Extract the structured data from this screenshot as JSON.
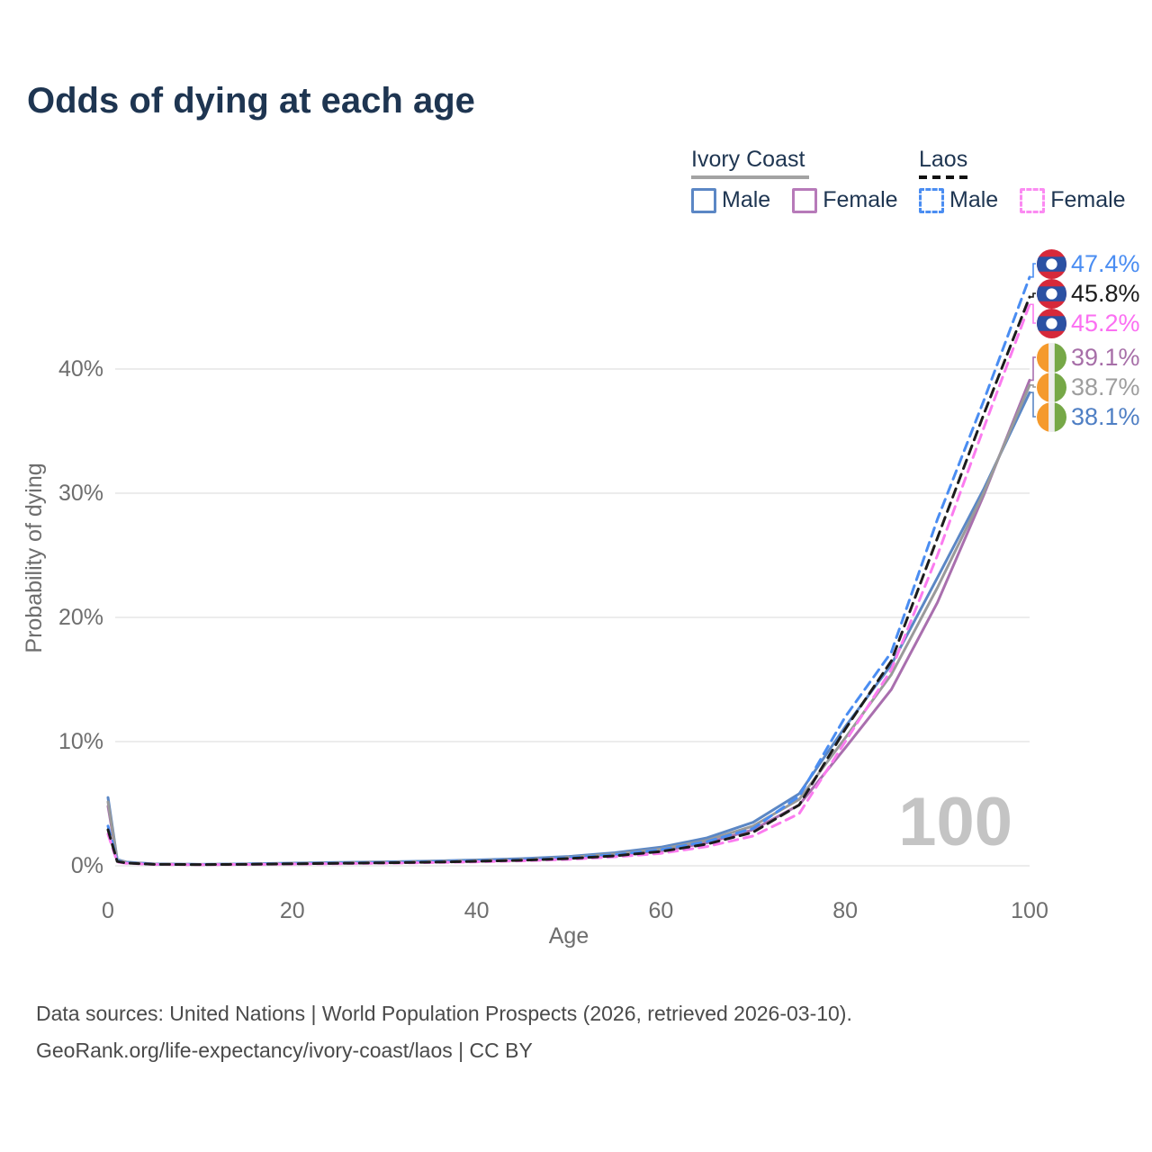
{
  "title": "Odds of dying at each age",
  "legend": {
    "groups": [
      {
        "label": "Ivory Coast",
        "line_style": "solid",
        "underline_color": "#a3a3a3",
        "items": [
          {
            "label": "Male",
            "color": "#5b87c5"
          },
          {
            "label": "Female",
            "color": "#b77ab9"
          }
        ]
      },
      {
        "label": "Laos",
        "line_style": "dashed",
        "underline_color": "#111111",
        "items": [
          {
            "label": "Male",
            "color": "#4a8df2"
          },
          {
            "label": "Female",
            "color": "#fb8af2"
          }
        ]
      }
    ]
  },
  "chart_data": {
    "type": "line",
    "title": "Odds of dying at each age",
    "xlabel": "Age",
    "ylabel": "Probability of dying",
    "xlim": [
      0,
      100
    ],
    "ylim": [
      0,
      47.5
    ],
    "grid": true,
    "x_ticks": [
      {
        "value": 0,
        "label": "0"
      },
      {
        "value": 20,
        "label": "20"
      },
      {
        "value": 40,
        "label": "40"
      },
      {
        "value": 60,
        "label": "60"
      },
      {
        "value": 80,
        "label": "80"
      },
      {
        "value": 100,
        "label": "100"
      }
    ],
    "y_ticks": [
      {
        "value": 0,
        "label": "0%"
      },
      {
        "value": 10,
        "label": "10%"
      },
      {
        "value": 20,
        "label": "20%"
      },
      {
        "value": 30,
        "label": "30%"
      },
      {
        "value": 40,
        "label": "40%"
      }
    ],
    "x": [
      0,
      1,
      2,
      5,
      10,
      15,
      20,
      25,
      30,
      35,
      40,
      45,
      50,
      55,
      60,
      65,
      70,
      75,
      80,
      85,
      90,
      95,
      100
    ],
    "series": [
      {
        "name": "Ivory Coast Male",
        "country": "Ivory Coast",
        "group": "Male",
        "color": "#5b87c5",
        "dashed": false,
        "flag": "ivory-coast",
        "end_label": "38.1%",
        "end_label_color": "#4f7fc4",
        "values": [
          5.5,
          0.5,
          0.3,
          0.15,
          0.12,
          0.15,
          0.22,
          0.27,
          0.32,
          0.38,
          0.47,
          0.58,
          0.75,
          1.05,
          1.5,
          2.25,
          3.5,
          5.8,
          11.2,
          16.2,
          23.2,
          30.3,
          38.1
        ]
      },
      {
        "name": "Ivory Coast Female",
        "country": "Ivory Coast",
        "group": "Female",
        "color": "#a96fae",
        "dashed": false,
        "flag": "ivory-coast",
        "end_label": "39.1%",
        "end_label_color": "#a76fa8",
        "values": [
          4.8,
          0.42,
          0.26,
          0.13,
          0.1,
          0.12,
          0.16,
          0.2,
          0.25,
          0.3,
          0.37,
          0.46,
          0.6,
          0.85,
          1.2,
          1.85,
          2.9,
          4.9,
          9.5,
          14.2,
          21.2,
          29.8,
          39.1
        ]
      },
      {
        "name": "Ivory Coast Average",
        "country": "Ivory Coast",
        "group": "Average",
        "color": "#9a9a9a",
        "dashed": false,
        "flag": "ivory-coast",
        "end_label": "38.7%",
        "end_label_color": "#9e9e9e",
        "values": [
          5.15,
          0.46,
          0.28,
          0.14,
          0.11,
          0.14,
          0.19,
          0.24,
          0.29,
          0.34,
          0.42,
          0.52,
          0.68,
          0.95,
          1.35,
          2.05,
          3.2,
          5.35,
          10.3,
          15.4,
          22.4,
          30.0,
          38.7
        ]
      },
      {
        "name": "Laos Male",
        "country": "Laos",
        "group": "Male",
        "color": "#4a8df2",
        "dashed": true,
        "flag": "laos",
        "end_label": "47.4%",
        "end_label_color": "#4a8df2",
        "values": [
          3.2,
          0.4,
          0.25,
          0.13,
          0.11,
          0.14,
          0.18,
          0.22,
          0.27,
          0.33,
          0.4,
          0.5,
          0.65,
          0.9,
          1.3,
          1.95,
          3.0,
          5.6,
          12.0,
          17.2,
          27.9,
          37.4,
          47.4
        ]
      },
      {
        "name": "Laos Female",
        "country": "Laos",
        "group": "Female",
        "color": "#fb7bef",
        "dashed": true,
        "flag": "laos",
        "end_label": "45.2%",
        "end_label_color": "#fb6ff2",
        "values": [
          2.55,
          0.3,
          0.2,
          0.11,
          0.09,
          0.11,
          0.14,
          0.17,
          0.21,
          0.26,
          0.32,
          0.4,
          0.52,
          0.72,
          1.0,
          1.55,
          2.4,
          4.2,
          10.0,
          15.8,
          25.0,
          35.2,
          45.2
        ]
      },
      {
        "name": "Laos Average",
        "country": "Laos",
        "group": "Average",
        "color": "#1c1c1c",
        "dashed": true,
        "flag": "laos",
        "end_label": "45.8%",
        "end_label_color": "#1c1c1c",
        "values": [
          2.9,
          0.35,
          0.22,
          0.12,
          0.1,
          0.12,
          0.16,
          0.2,
          0.24,
          0.29,
          0.36,
          0.45,
          0.58,
          0.8,
          1.15,
          1.75,
          2.7,
          4.9,
          11.0,
          16.5,
          26.4,
          36.3,
          45.8
        ]
      }
    ],
    "legend_position": "top-right",
    "flag_colors": {
      "laos": {
        "red": "#d6293a",
        "blue": "#2b51a3",
        "white": "#ffffff"
      },
      "ivory_coast": {
        "orange": "#f59a2d",
        "white": "#ededed",
        "green": "#76a847"
      }
    }
  },
  "age_indicator": "100",
  "footer": {
    "line1": "Data sources: United Nations | World Population Prospects (2026, retrieved 2026-03-10).",
    "line2": "GeoRank.org/life-expectancy/ivory-coast/laos | CC BY"
  }
}
